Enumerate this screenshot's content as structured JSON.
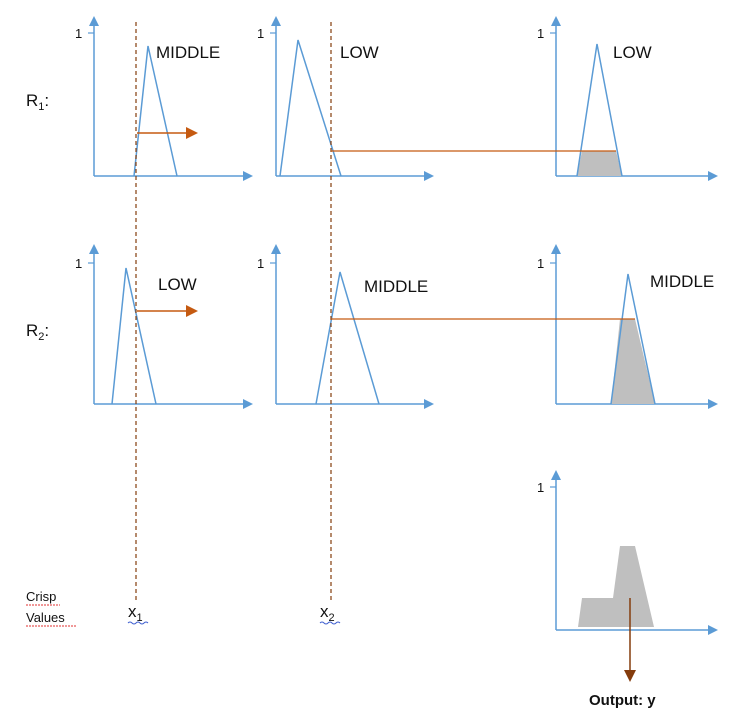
{
  "rules": [
    {
      "label": "R",
      "sub": "1",
      "suffix": ":",
      "input1_set": "MIDDLE",
      "input2_set": "LOW",
      "output_set": "LOW"
    },
    {
      "label": "R",
      "sub": "2",
      "suffix": ":",
      "input1_set": "LOW",
      "input2_set": "MIDDLE",
      "output_set": "MIDDLE"
    }
  ],
  "axis_max_label": "1",
  "crisp_label_line1": "Crisp",
  "crisp_label_line2": "Values",
  "x1": {
    "main": "x",
    "sub": "1"
  },
  "x2": {
    "main": "x",
    "sub": "2"
  },
  "output_label": "Output: y",
  "colors": {
    "axis": "#5b9bd5",
    "triangle": "#5b9bd5",
    "arrow": "#c55a11",
    "crisp_line": "#843c0c",
    "fill": "#bfbfbf",
    "output_arrow": "#843c0c"
  }
}
